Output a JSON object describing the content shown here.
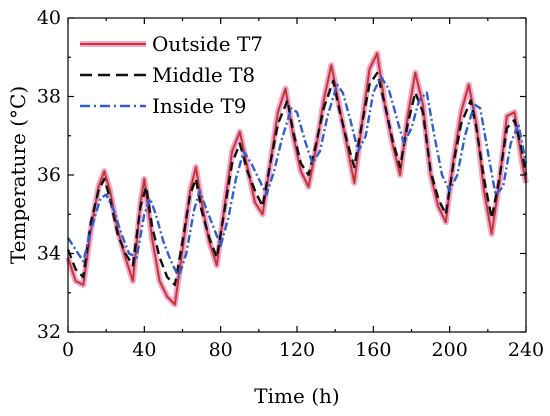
{
  "chart_data": {
    "type": "line",
    "xlabel": "Time (h)",
    "ylabel": "Temperature (°C)",
    "xlim": [
      0,
      240
    ],
    "ylim": [
      32,
      40
    ],
    "xticks": [
      0,
      40,
      80,
      120,
      160,
      200,
      240
    ],
    "yticks": [
      32,
      34,
      36,
      38,
      40
    ],
    "grid": false,
    "legend_position": "top-left",
    "series": [
      {
        "name": "Outside T7",
        "color": "#c0392b",
        "style": "solid",
        "x": [
          0,
          4,
          8,
          12,
          16,
          19,
          22,
          26,
          30,
          34,
          38,
          40,
          44,
          48,
          52,
          56,
          60,
          64,
          67,
          70,
          74,
          78,
          82,
          86,
          90,
          94,
          98,
          102,
          106,
          110,
          114,
          118,
          122,
          126,
          130,
          134,
          138,
          142,
          146,
          150,
          154,
          158,
          162,
          166,
          170,
          174,
          178,
          182,
          186,
          190,
          194,
          198,
          202,
          206,
          210,
          214,
          218,
          222,
          226,
          230,
          234,
          238,
          240
        ],
        "y": [
          33.9,
          33.3,
          33.2,
          34.6,
          35.7,
          36.1,
          35.6,
          34.6,
          33.9,
          33.3,
          35.3,
          35.9,
          34.4,
          33.3,
          32.9,
          32.7,
          34.1,
          35.6,
          36.2,
          35.3,
          34.3,
          33.7,
          35.2,
          36.6,
          37.1,
          36.2,
          35.3,
          35.0,
          36.3,
          37.6,
          38.2,
          37.0,
          36.1,
          35.7,
          36.7,
          37.9,
          38.8,
          37.8,
          36.8,
          35.8,
          37.3,
          38.7,
          39.1,
          37.8,
          36.8,
          36.0,
          37.5,
          38.6,
          37.8,
          36.0,
          35.2,
          34.8,
          36.4,
          37.6,
          38.3,
          37.3,
          35.6,
          34.5,
          35.8,
          37.5,
          37.6,
          36.3,
          35.8
        ]
      },
      {
        "name": "Middle T8",
        "color": "#111111",
        "style": "dashed",
        "x": [
          0,
          4,
          8,
          12,
          16,
          19,
          22,
          26,
          30,
          34,
          38,
          41,
          44,
          48,
          52,
          56,
          60,
          64,
          67,
          70,
          74,
          78,
          82,
          86,
          90,
          94,
          98,
          102,
          106,
          110,
          115,
          118,
          122,
          126,
          130,
          134,
          139,
          142,
          146,
          150,
          154,
          158,
          162,
          166,
          170,
          174,
          178,
          182,
          186,
          190,
          194,
          198,
          202,
          206,
          211,
          214,
          218,
          222,
          226,
          230,
          234,
          238,
          240
        ],
        "y": [
          34.1,
          33.6,
          33.4,
          34.8,
          35.6,
          35.9,
          35.4,
          34.5,
          34.0,
          33.7,
          35.2,
          35.7,
          34.7,
          33.9,
          33.4,
          33.2,
          34.3,
          35.5,
          35.9,
          35.1,
          34.4,
          33.9,
          35.1,
          36.3,
          36.8,
          36.1,
          35.6,
          35.2,
          36.3,
          37.3,
          37.9,
          37.1,
          36.3,
          36.0,
          36.8,
          37.7,
          38.4,
          37.7,
          36.9,
          36.2,
          37.3,
          38.3,
          38.6,
          37.8,
          36.9,
          36.2,
          37.3,
          38.1,
          37.6,
          36.1,
          35.4,
          35.0,
          36.3,
          37.3,
          37.9,
          37.2,
          35.9,
          34.9,
          35.9,
          37.2,
          37.4,
          36.6,
          36.0
        ]
      },
      {
        "name": "Inside T9",
        "color": "#2e5fd1",
        "style": "dashdot",
        "x": [
          0,
          4,
          8,
          12,
          17,
          20,
          24,
          28,
          32,
          36,
          40,
          43,
          46,
          50,
          54,
          58,
          62,
          66,
          69,
          72,
          76,
          80,
          84,
          88,
          92,
          96,
          100,
          104,
          108,
          112,
          117,
          120,
          124,
          128,
          132,
          136,
          141,
          144,
          148,
          152,
          156,
          160,
          164,
          168,
          172,
          176,
          180,
          184,
          188,
          192,
          196,
          200,
          204,
          208,
          213,
          216,
          220,
          224,
          228,
          232,
          236,
          240
        ],
        "y": [
          34.4,
          34.1,
          33.8,
          34.6,
          35.4,
          35.5,
          35.1,
          34.5,
          34.0,
          33.9,
          35.0,
          35.4,
          35.0,
          34.3,
          33.8,
          33.4,
          34.0,
          35.1,
          35.6,
          35.2,
          34.7,
          34.2,
          34.9,
          35.9,
          36.6,
          36.3,
          35.9,
          35.5,
          36.1,
          36.9,
          37.7,
          37.6,
          36.9,
          36.3,
          36.6,
          37.5,
          38.3,
          38.1,
          37.4,
          36.6,
          37.0,
          38.1,
          38.5,
          38.2,
          37.5,
          36.8,
          37.2,
          37.9,
          38.1,
          37.0,
          36.0,
          35.6,
          36.0,
          37.0,
          37.8,
          37.7,
          36.6,
          35.5,
          35.7,
          36.8,
          37.3,
          36.3
        ]
      }
    ]
  }
}
